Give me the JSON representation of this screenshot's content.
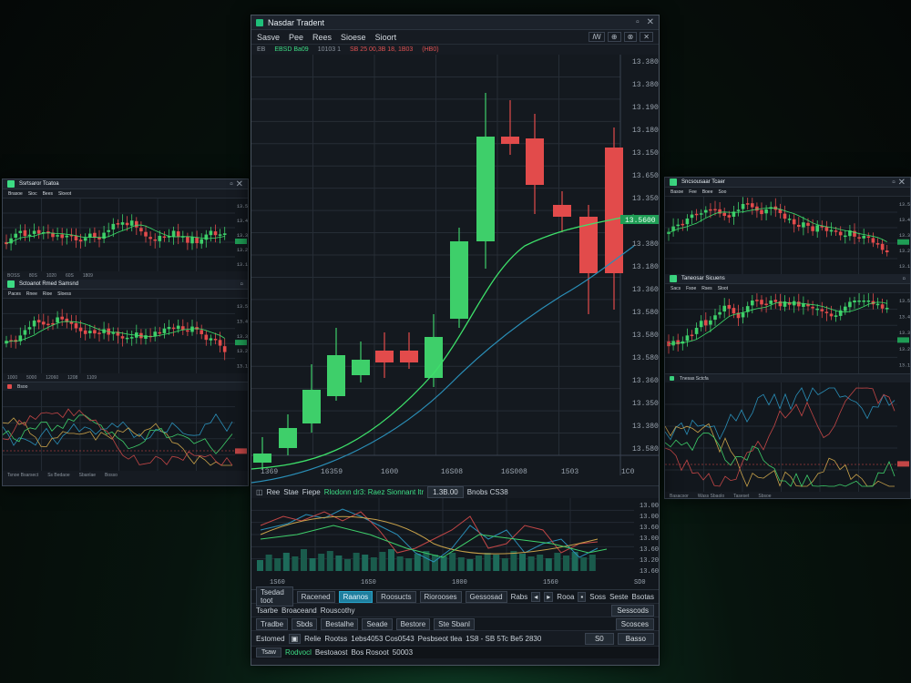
{
  "main": {
    "title": "Nasdar Tradent",
    "menu": [
      "Sasve",
      "Pee",
      "Rees",
      "Sioese",
      "Sioort"
    ],
    "tools": [
      "ꟿ",
      "⊕",
      "⊗",
      "✕"
    ],
    "info": {
      "id": "EB",
      "symbol": "EBSD Ba09",
      "val1": "10103 1",
      "delta": "SB 25 00,3B 18, 1B03",
      "extra": "(HB0)"
    },
    "price_labels": [
      "13.3800",
      "13.3800",
      "13.1900",
      "13.1800",
      "13.1500",
      "13.6500",
      "13.3500",
      "13.3500",
      "13.3800",
      "13.1800",
      "13.3600",
      "13.5800",
      "13.5800",
      "13.5800",
      "13.3600",
      "13.3500",
      "13.3800",
      "13.5800"
    ],
    "price_badge": "13.5600",
    "time_labels": [
      "1369",
      "16359",
      "1600",
      "16S08",
      "16S008",
      "1503",
      "1C0"
    ],
    "osc": {
      "header": [
        "Ree",
        "Stae",
        "Fiepe",
        "Rlodonn dr3: Raez Sionnant ltr",
        "1.3B.00",
        "Bnobs CS38"
      ],
      "labels": [
        "13.00",
        "13.00",
        "13.60",
        "13.00",
        "13.60",
        "13.20",
        "13.60"
      ],
      "time_labels": [
        "1S60",
        "16S0",
        "1800",
        "1560",
        "SD0"
      ]
    },
    "tabs": [
      "Tsedad toot",
      "Racened",
      "Raanos",
      "Roosucts",
      "Riorooses",
      "Gessosad",
      "Rabs"
    ],
    "tab_end": [
      "Rooa",
      "Soss",
      "Seste",
      "Bsotas"
    ],
    "row2": [
      "Tsarbe",
      "Broaceand",
      "Rouscothy"
    ],
    "row2_btn": "Sesscods",
    "row3": [
      "Tradbe",
      "Sbds",
      "Bestalhe",
      "Seade",
      "Bestore",
      "Ste Sbanl"
    ],
    "row3_btn": "Scosces",
    "row4": {
      "a": "Estomed",
      "b": "Relie",
      "c": "Rootss",
      "d": "1ebs4053 Cos0543",
      "e": "Pesbseot tlea",
      "f": "1S8 - SB 5Tc Be5 2830",
      "btn1": "S0",
      "btn2": "Basso"
    },
    "status": {
      "a": "Tsaw",
      "b": "Rodvocl",
      "c": "Bestoaost",
      "d": "Bos Rosoot",
      "e": "50003"
    }
  },
  "left": {
    "p1": {
      "title": "Ssrtsaror Tcatoa",
      "menu": [
        "Brasoe",
        "Sioc",
        "Bees",
        "Sloeot"
      ],
      "foot": [
        "BOSS",
        "80S",
        "1020",
        "60S",
        "1809"
      ]
    },
    "p2": {
      "title": "Sctoanot Rmed Samsnd",
      "menu": [
        "Paces",
        "Rnee",
        "Rioe",
        "Sloess"
      ],
      "foot": [
        "1000",
        "5000",
        "12060",
        "1208",
        "1109"
      ]
    },
    "p3": {
      "title": "Bsoo",
      "foot": [
        "Tsnoe Bsarsect",
        "Ss Bedaoe",
        "Sbanlae",
        "Bosso"
      ]
    }
  },
  "right": {
    "p1": {
      "title": "Sncsousaar Tcaer",
      "menu": [
        "Basoe",
        "Fee",
        "Boee",
        "Soo"
      ]
    },
    "p2": {
      "title": "Taneosar Sicuens",
      "menu": [
        "Sacs",
        "Fsoe",
        "Rses",
        "Sloot"
      ]
    },
    "p3": {
      "title": "Tnesas Sctcfa",
      "foot": [
        "Basacsor",
        "Wass Sbaolo",
        "Taseset",
        "Sbsoe"
      ]
    }
  },
  "colors": {
    "up": "#3ecf6a",
    "down": "#e24b4b",
    "ma_fast": "#3de06a",
    "ma_slow": "#2a8fb8",
    "accent": "#1f7f9f"
  }
}
